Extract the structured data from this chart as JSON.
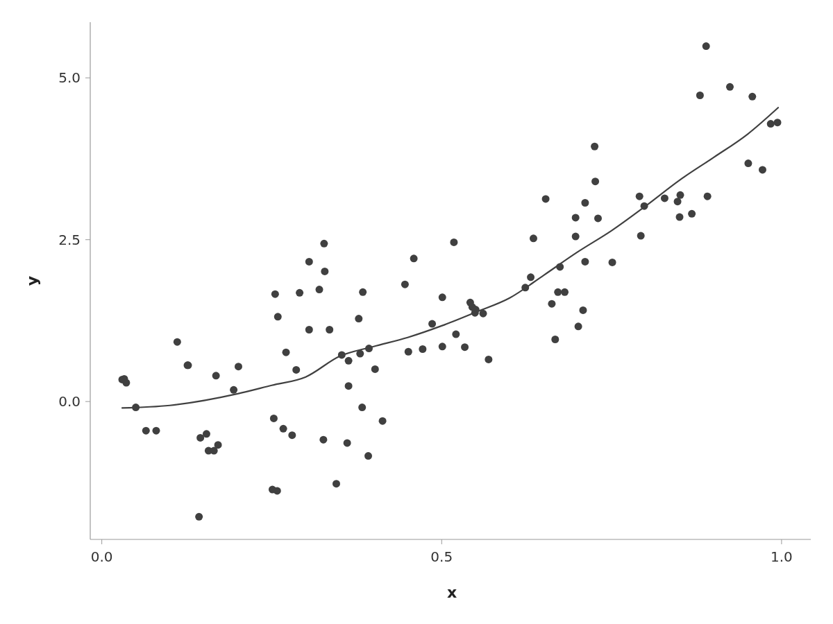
{
  "chart_data": {
    "type": "scatter",
    "xlabel": "x",
    "ylabel": "y",
    "xlim": [
      -0.017,
      1.043
    ],
    "ylim": [
      -2.13,
      5.86
    ],
    "xticks": [
      {
        "value": 0,
        "label": "0.0"
      },
      {
        "value": 0.5,
        "label": "0.5"
      },
      {
        "value": 1,
        "label": "1.0"
      }
    ],
    "yticks": [
      {
        "value": 0,
        "label": "0.0"
      },
      {
        "value": 2.5,
        "label": "2.5"
      },
      {
        "value": 5,
        "label": "5.0"
      }
    ],
    "grid": false,
    "series": [
      {
        "color": "#404040",
        "marker": "circle",
        "x": [
          0.03,
          0.033,
          0.036,
          0.05,
          0.065,
          0.08,
          0.111,
          0.126,
          0.127,
          0.143,
          0.145,
          0.154,
          0.157,
          0.165,
          0.168,
          0.171,
          0.194,
          0.201,
          0.251,
          0.253,
          0.255,
          0.258,
          0.259,
          0.267,
          0.271,
          0.28,
          0.286,
          0.291,
          0.305,
          0.305,
          0.32,
          0.326,
          0.327,
          0.328,
          0.335,
          0.345,
          0.353,
          0.361,
          0.363,
          0.363,
          0.378,
          0.38,
          0.383,
          0.384,
          0.392,
          0.393,
          0.402,
          0.413,
          0.446,
          0.451,
          0.459,
          0.472,
          0.486,
          0.501,
          0.501,
          0.518,
          0.521,
          0.534,
          0.542,
          0.545,
          0.549,
          0.55,
          0.561,
          0.569,
          0.623,
          0.631,
          0.635,
          0.653,
          0.662,
          0.667,
          0.671,
          0.674,
          0.681,
          0.697,
          0.697,
          0.701,
          0.708,
          0.711,
          0.711,
          0.725,
          0.726,
          0.73,
          0.751,
          0.791,
          0.793,
          0.798,
          0.828,
          0.847,
          0.85,
          0.851,
          0.868,
          0.88,
          0.889,
          0.891,
          0.924,
          0.951,
          0.957,
          0.972,
          0.984,
          0.994
        ],
        "values": [
          0.34,
          0.35,
          0.29,
          -0.09,
          -0.45,
          -0.45,
          0.92,
          0.56,
          0.56,
          -1.78,
          -0.56,
          -0.5,
          -0.76,
          -0.76,
          0.4,
          -0.67,
          0.18,
          0.54,
          -1.36,
          -0.26,
          1.66,
          -1.38,
          1.31,
          -0.42,
          0.76,
          -0.52,
          0.49,
          1.68,
          2.16,
          1.11,
          1.73,
          -0.59,
          2.44,
          2.01,
          1.11,
          -1.27,
          0.72,
          -0.64,
          0.63,
          0.24,
          1.28,
          0.74,
          -0.09,
          1.69,
          -0.84,
          0.82,
          0.5,
          -0.3,
          1.81,
          0.77,
          2.21,
          0.81,
          1.2,
          0.85,
          1.61,
          2.46,
          1.04,
          0.84,
          1.53,
          1.46,
          1.37,
          1.42,
          1.36,
          0.65,
          1.76,
          1.92,
          2.52,
          3.13,
          1.51,
          0.96,
          1.69,
          2.08,
          1.69,
          2.55,
          2.84,
          1.16,
          1.41,
          2.16,
          3.07,
          3.94,
          3.4,
          2.83,
          2.15,
          3.17,
          2.56,
          3.02,
          3.14,
          3.09,
          2.85,
          3.19,
          2.9,
          4.73,
          5.49,
          3.17,
          4.86,
          3.68,
          4.71,
          3.58,
          4.29,
          4.31
        ]
      },
      {
        "type": "line",
        "color": "#404040",
        "line_style": "solid",
        "x": [
          0.03,
          0.1,
          0.2,
          0.25,
          0.3,
          0.35,
          0.4,
          0.45,
          0.5,
          0.55,
          0.6,
          0.65,
          0.7,
          0.75,
          0.8,
          0.85,
          0.9,
          0.95,
          0.995
        ],
        "values": [
          -0.1,
          -0.06,
          0.12,
          0.25,
          0.38,
          0.7,
          0.85,
          0.99,
          1.17,
          1.38,
          1.6,
          1.95,
          2.31,
          2.64,
          3.02,
          3.42,
          3.77,
          4.13,
          4.54
        ]
      }
    ]
  }
}
